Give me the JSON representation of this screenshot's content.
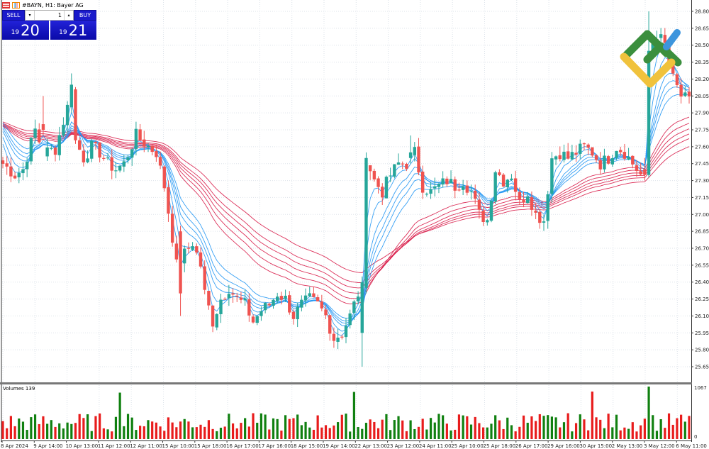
{
  "window": {
    "title": "#BAYN, H1:  Bayer AG",
    "symbol": "#BAYN",
    "timeframe": "H1",
    "instrument_name": "Bayer AG",
    "icons": [
      "grid-menu-icon",
      "candlestick-icon"
    ]
  },
  "trade_panel": {
    "sell_label": "SELL",
    "buy_label": "BUY",
    "lot_value": "1",
    "decrease_icon": "▾",
    "increase_icon": "▴",
    "sell_price_small": "19",
    "sell_price_large": "20",
    "buy_price_small": "19",
    "buy_price_large": "21"
  },
  "volume_pane": {
    "label": "Volumes 139",
    "axis_max": "1067",
    "axis_min": "0"
  },
  "colors": {
    "bull": "#26a69a",
    "bear": "#ef5350",
    "vol_up": "#108010",
    "vol_down": "#e81c1c",
    "ema_fast": "#2196f3",
    "ema_slow": "#d81b48",
    "grid": "#dde3ea",
    "axis": "#333333",
    "logo_green": "#3b8f3e",
    "logo_blue": "#3d95dd",
    "logo_yellow": "#f0c23c"
  },
  "chart_data": {
    "type": "candlestick",
    "title": "#BAYN, H1: Bayer AG",
    "indicators": [
      "Guppy Multiple Moving Average (short group, blue)",
      "Guppy Multiple Moving Average (long group, red)",
      "Volumes"
    ],
    "y_axis": {
      "ticks": [
        "28.80",
        "28.65",
        "28.50",
        "28.35",
        "28.20",
        "28.05",
        "27.90",
        "27.75",
        "27.60",
        "27.45",
        "27.30",
        "27.15",
        "27.00",
        "26.85",
        "26.70",
        "26.55",
        "26.40",
        "26.25",
        "26.10",
        "25.95",
        "25.80",
        "25.65"
      ],
      "range": [
        25.6,
        28.85
      ]
    },
    "x_axis": {
      "ticks": [
        "8 Apr 2024",
        "9 Apr 14:00",
        "10 Apr 13:00",
        "11 Apr 12:00",
        "12 Apr 11:00",
        "15 Apr 10:00",
        "15 Apr 18:00",
        "16 Apr 17:00",
        "17 Apr 16:00",
        "18 Apr 15:00",
        "19 Apr 14:00",
        "22 Apr 13:00",
        "23 Apr 12:00",
        "24 Apr 11:00",
        "25 Apr 10:00",
        "25 Apr 18:00",
        "26 Apr 17:00",
        "29 Apr 16:00",
        "30 Apr 15:00",
        "2 May 13:00",
        "3 May 12:00",
        "6 May 11:00"
      ]
    },
    "close_path": [
      [
        0,
        27.45
      ],
      [
        3,
        27.35
      ],
      [
        5,
        27.4
      ],
      [
        8,
        27.75
      ],
      [
        10,
        27.55
      ],
      [
        13,
        27.58
      ],
      [
        16,
        27.95
      ],
      [
        17,
        28.15
      ],
      [
        18,
        27.65
      ],
      [
        20,
        27.5
      ],
      [
        22,
        27.6
      ],
      [
        24,
        27.55
      ],
      [
        26,
        27.45
      ],
      [
        28,
        27.4
      ],
      [
        30,
        27.45
      ],
      [
        33,
        27.7
      ],
      [
        36,
        27.6
      ],
      [
        38,
        27.55
      ],
      [
        40,
        27.25
      ],
      [
        42,
        26.8
      ],
      [
        43,
        26.55
      ],
      [
        45,
        26.65
      ],
      [
        47,
        26.75
      ],
      [
        49,
        26.55
      ],
      [
        50,
        26.3
      ],
      [
        52,
        26.05
      ],
      [
        54,
        26.25
      ],
      [
        56,
        26.35
      ],
      [
        58,
        26.25
      ],
      [
        60,
        26.2
      ],
      [
        62,
        26.05
      ],
      [
        64,
        26.15
      ],
      [
        66,
        26.2
      ],
      [
        68,
        26.3
      ],
      [
        70,
        26.25
      ],
      [
        72,
        26.1
      ],
      [
        74,
        26.2
      ],
      [
        76,
        26.25
      ],
      [
        78,
        26.2
      ],
      [
        80,
        26.1
      ],
      [
        82,
        25.9
      ],
      [
        84,
        25.95
      ],
      [
        86,
        26.1
      ],
      [
        88,
        26.3
      ],
      [
        90,
        27.5
      ],
      [
        92,
        27.3
      ],
      [
        94,
        27.2
      ],
      [
        96,
        27.35
      ],
      [
        98,
        27.45
      ],
      [
        100,
        27.45
      ],
      [
        102,
        27.55
      ],
      [
        104,
        27.25
      ],
      [
        106,
        27.2
      ],
      [
        108,
        27.25
      ],
      [
        110,
        27.3
      ],
      [
        112,
        27.25
      ],
      [
        114,
        27.3
      ],
      [
        116,
        27.2
      ],
      [
        118,
        27.0
      ],
      [
        120,
        26.95
      ],
      [
        122,
        27.4
      ],
      [
        124,
        27.3
      ],
      [
        126,
        27.35
      ],
      [
        128,
        27.1
      ],
      [
        130,
        27.2
      ],
      [
        132,
        27.0
      ],
      [
        134,
        26.95
      ],
      [
        136,
        27.5
      ],
      [
        138,
        27.55
      ],
      [
        140,
        27.5
      ],
      [
        142,
        27.55
      ],
      [
        144,
        27.6
      ],
      [
        146,
        27.55
      ],
      [
        148,
        27.45
      ],
      [
        150,
        27.5
      ],
      [
        152,
        27.6
      ],
      [
        154,
        27.55
      ],
      [
        156,
        27.45
      ],
      [
        158,
        27.35
      ],
      [
        160,
        28.45
      ],
      [
        162,
        28.6
      ],
      [
        164,
        28.5
      ],
      [
        166,
        28.2
      ],
      [
        168,
        28.05
      ],
      [
        170,
        28.0
      ]
    ],
    "volumes_approx": {
      "max": 1067,
      "spike_indices": [
        29,
        87,
        146
      ],
      "note": "~170 hourly bars; most volumes between ~150 and ~600"
    }
  }
}
